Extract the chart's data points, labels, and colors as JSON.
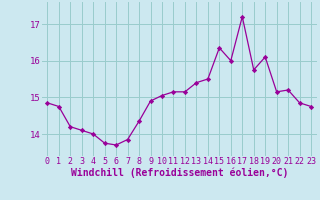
{
  "x": [
    0,
    1,
    2,
    3,
    4,
    5,
    6,
    7,
    8,
    9,
    10,
    11,
    12,
    13,
    14,
    15,
    16,
    17,
    18,
    19,
    20,
    21,
    22,
    23
  ],
  "y": [
    14.85,
    14.75,
    14.2,
    14.1,
    14.0,
    13.75,
    13.7,
    13.85,
    14.35,
    14.9,
    15.05,
    15.15,
    15.15,
    15.4,
    15.5,
    16.35,
    16.0,
    17.2,
    15.75,
    16.1,
    15.15,
    15.2,
    14.85,
    14.75
  ],
  "line_color": "#990099",
  "marker": "D",
  "marker_size": 2.2,
  "bg_color": "#cce8f0",
  "grid_color": "#99cccc",
  "xlabel": "Windchill (Refroidissement éolien,°C)",
  "ylim": [
    13.4,
    17.6
  ],
  "xlim": [
    -0.5,
    23.5
  ],
  "yticks": [
    14,
    15,
    16,
    17
  ],
  "xticks": [
    0,
    1,
    2,
    3,
    4,
    5,
    6,
    7,
    8,
    9,
    10,
    11,
    12,
    13,
    14,
    15,
    16,
    17,
    18,
    19,
    20,
    21,
    22,
    23
  ],
  "tick_fontsize": 6.0,
  "xlabel_fontsize": 7.0
}
